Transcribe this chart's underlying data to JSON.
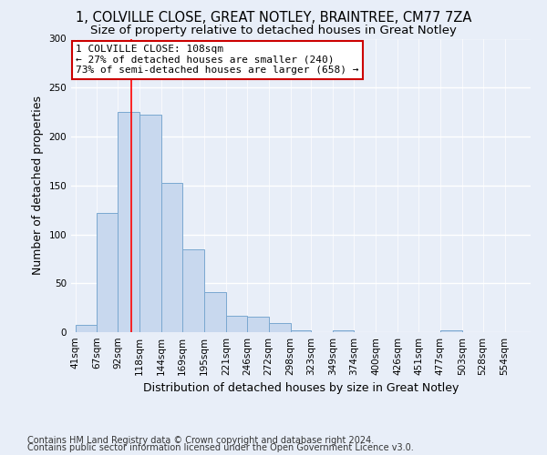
{
  "title1": "1, COLVILLE CLOSE, GREAT NOTLEY, BRAINTREE, CM77 7ZA",
  "title2": "Size of property relative to detached houses in Great Notley",
  "xlabel": "Distribution of detached houses by size in Great Notley",
  "ylabel": "Number of detached properties",
  "bar_color": "#c8d8ee",
  "bar_edge_color": "#7aa8d0",
  "bin_edges": [
    41,
    67,
    92,
    118,
    144,
    169,
    195,
    221,
    246,
    272,
    298,
    323,
    349,
    374,
    400,
    426,
    451,
    477,
    503,
    528,
    554
  ],
  "bar_heights": [
    7,
    122,
    225,
    222,
    153,
    85,
    41,
    17,
    16,
    9,
    2,
    0,
    2,
    0,
    0,
    0,
    0,
    2,
    0,
    0
  ],
  "red_line_x": 108,
  "ylim": [
    0,
    300
  ],
  "yticks": [
    0,
    50,
    100,
    150,
    200,
    250,
    300
  ],
  "annotation_text": "1 COLVILLE CLOSE: 108sqm\n← 27% of detached houses are smaller (240)\n73% of semi-detached houses are larger (658) →",
  "annotation_box_color": "#ffffff",
  "annotation_box_edge_color": "#cc0000",
  "footer1": "Contains HM Land Registry data © Crown copyright and database right 2024.",
  "footer2": "Contains public sector information licensed under the Open Government Licence v3.0.",
  "background_color": "#e8eef8",
  "grid_color": "#ffffff",
  "title_fontsize": 10.5,
  "subtitle_fontsize": 9.5,
  "ylabel_fontsize": 9,
  "xlabel_fontsize": 9,
  "tick_fontsize": 7.5,
  "annotation_fontsize": 8,
  "footer_fontsize": 7
}
